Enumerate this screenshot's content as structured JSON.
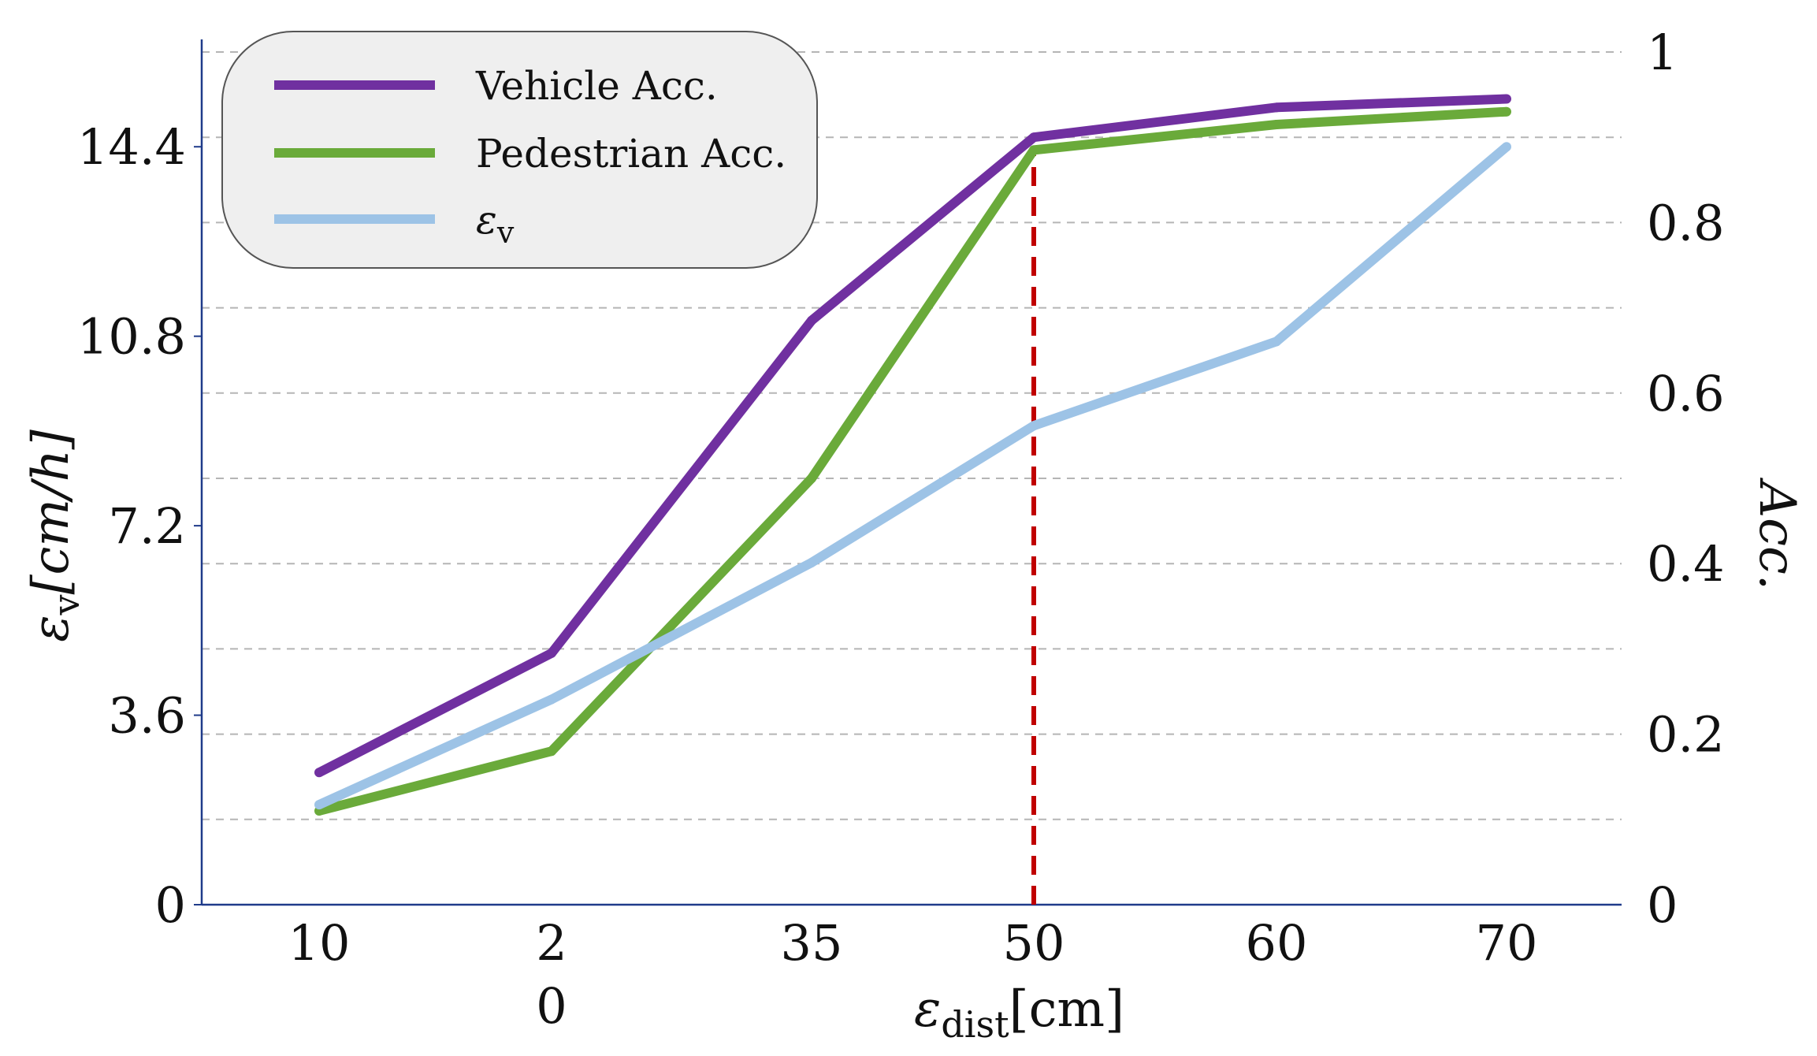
{
  "chart_data": {
    "type": "line",
    "title": "",
    "x": [
      10,
      20,
      35,
      50,
      60,
      70
    ],
    "x_tick_labels": [
      {
        "line1": "10",
        "line2": ""
      },
      {
        "line1": "2",
        "line2": "0"
      },
      {
        "line1": "35",
        "line2": ""
      },
      {
        "line1": "50",
        "line2": ""
      },
      {
        "line1": "60",
        "line2": ""
      },
      {
        "line1": "70",
        "line2": ""
      }
    ],
    "xlabel": {
      "symbol": "ε",
      "subscript": "dist",
      "unit": "[cm]"
    },
    "ylabel_left": {
      "symbol": "ε",
      "subscript": "v",
      "unit": "[cm/h]"
    },
    "ylabel_right": "Acc.",
    "ylim_left": [
      0,
      16.2
    ],
    "ylim_right": [
      0,
      1.0
    ],
    "yticks_left": [
      {
        "value": 0,
        "label": "0"
      },
      {
        "value": 3.6,
        "label": "3.6"
      },
      {
        "value": 7.2,
        "label": "7.2"
      },
      {
        "value": 10.8,
        "label": "10.8"
      },
      {
        "value": 14.4,
        "label": "14.4"
      }
    ],
    "yticks_right": [
      {
        "value": 0,
        "label": "0"
      },
      {
        "value": 0.2,
        "label": "0.2"
      },
      {
        "value": 0.4,
        "label": "0.4"
      },
      {
        "value": 0.6,
        "label": "0.6"
      },
      {
        "value": 0.8,
        "label": "0.8"
      },
      {
        "value": 1.0,
        "label": "1"
      }
    ],
    "grid_right": [
      0.1,
      0.2,
      0.3,
      0.4,
      0.5,
      0.6,
      0.7,
      0.8,
      0.9,
      1.0
    ],
    "series": [
      {
        "name": "Vehicle Acc.",
        "axis": "right",
        "color": "#7030a0",
        "values": [
          0.155,
          0.295,
          0.685,
          0.9,
          0.935,
          0.945
        ]
      },
      {
        "name": "Pedestrian Acc.",
        "axis": "right",
        "color": "#6aaa3a",
        "values": [
          0.11,
          0.18,
          0.5,
          0.885,
          0.915,
          0.93
        ]
      },
      {
        "name": "εv",
        "legend_symbol": "ε",
        "legend_subscript": "v",
        "axis": "left",
        "color": "#9dc3e6",
        "values": [
          1.9,
          3.9,
          6.5,
          9.1,
          10.7,
          14.4
        ]
      }
    ],
    "reference_line": {
      "x": 50,
      "from_y_right": 0,
      "to_y_right": 0.885,
      "color": "#c00000",
      "style": "dashed"
    },
    "legend": {
      "position": "top-left"
    }
  }
}
